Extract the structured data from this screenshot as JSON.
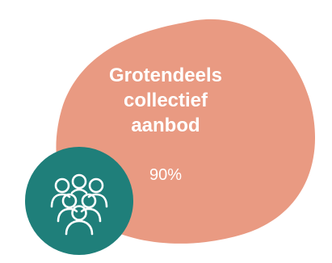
{
  "card": {
    "title_lines": [
      "Grotendeels",
      "collectief",
      "aanbod"
    ],
    "percentage": "90%"
  },
  "icon": "group-of-people-icon",
  "colors": {
    "blob": "#e99a82",
    "badge": "#1f7f7a",
    "text": "#ffffff"
  }
}
